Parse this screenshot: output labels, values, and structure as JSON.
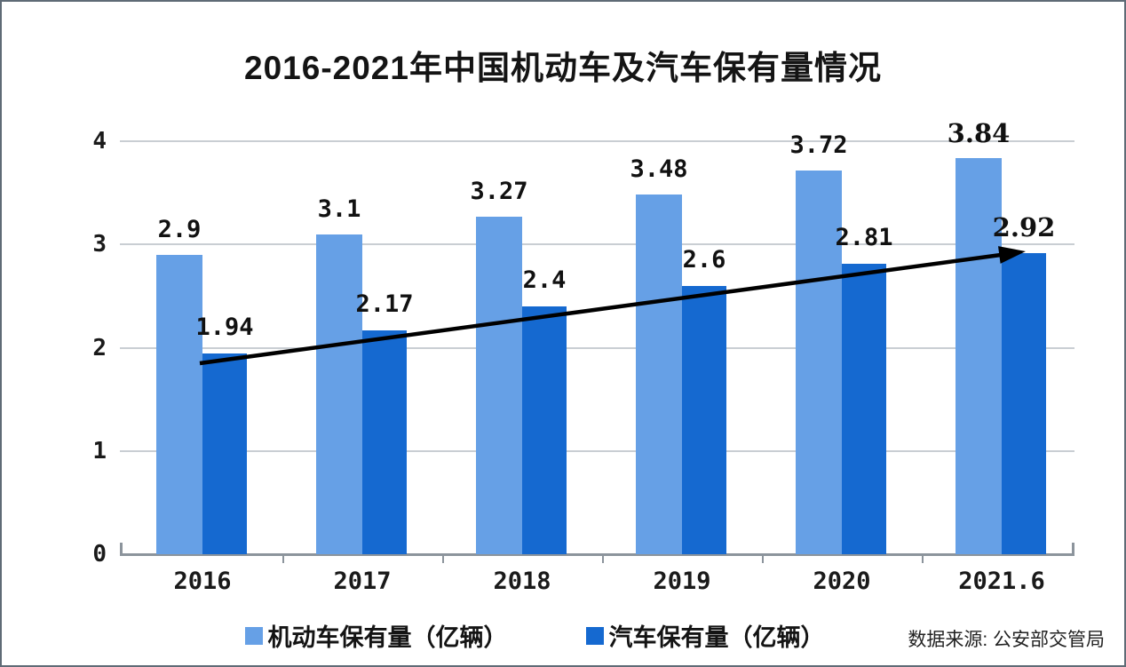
{
  "page": {
    "title": "2016-2021年中国机动车及汽车保有量情况",
    "source_note": "数据来源: 公安部交管局"
  },
  "chart_data": {
    "type": "bar",
    "title": "2016-2021年中国机动车及汽车保有量情况",
    "categories": [
      "2016",
      "2017",
      "2018",
      "2019",
      "2020",
      "2021.6"
    ],
    "series": [
      {
        "name": "机动车保有量（亿辆）",
        "color": "#66A0E6",
        "values": [
          2.9,
          3.1,
          3.27,
          3.48,
          3.72,
          3.84
        ],
        "labels": [
          "2.9",
          "3.1",
          "3.27",
          "3.48",
          "3.72",
          "3.84"
        ]
      },
      {
        "name": "汽车保有量（亿辆）",
        "color": "#1569D0",
        "values": [
          1.94,
          2.17,
          2.4,
          2.6,
          2.81,
          2.92
        ],
        "labels": [
          "1.94",
          "2.17",
          "2.4",
          "2.6",
          "2.81",
          "2.92"
        ]
      }
    ],
    "xlabel": "",
    "ylabel": "",
    "y_ticks": [
      0,
      1,
      2,
      3,
      4
    ],
    "ylim": [
      0,
      4
    ],
    "grid": true,
    "legend_position": "bottom",
    "annotations": [
      {
        "type": "trend-arrow",
        "series": "汽车保有量（亿辆）",
        "from_category": "2016",
        "to_category": "2021.6",
        "color": "#000000"
      }
    ]
  }
}
